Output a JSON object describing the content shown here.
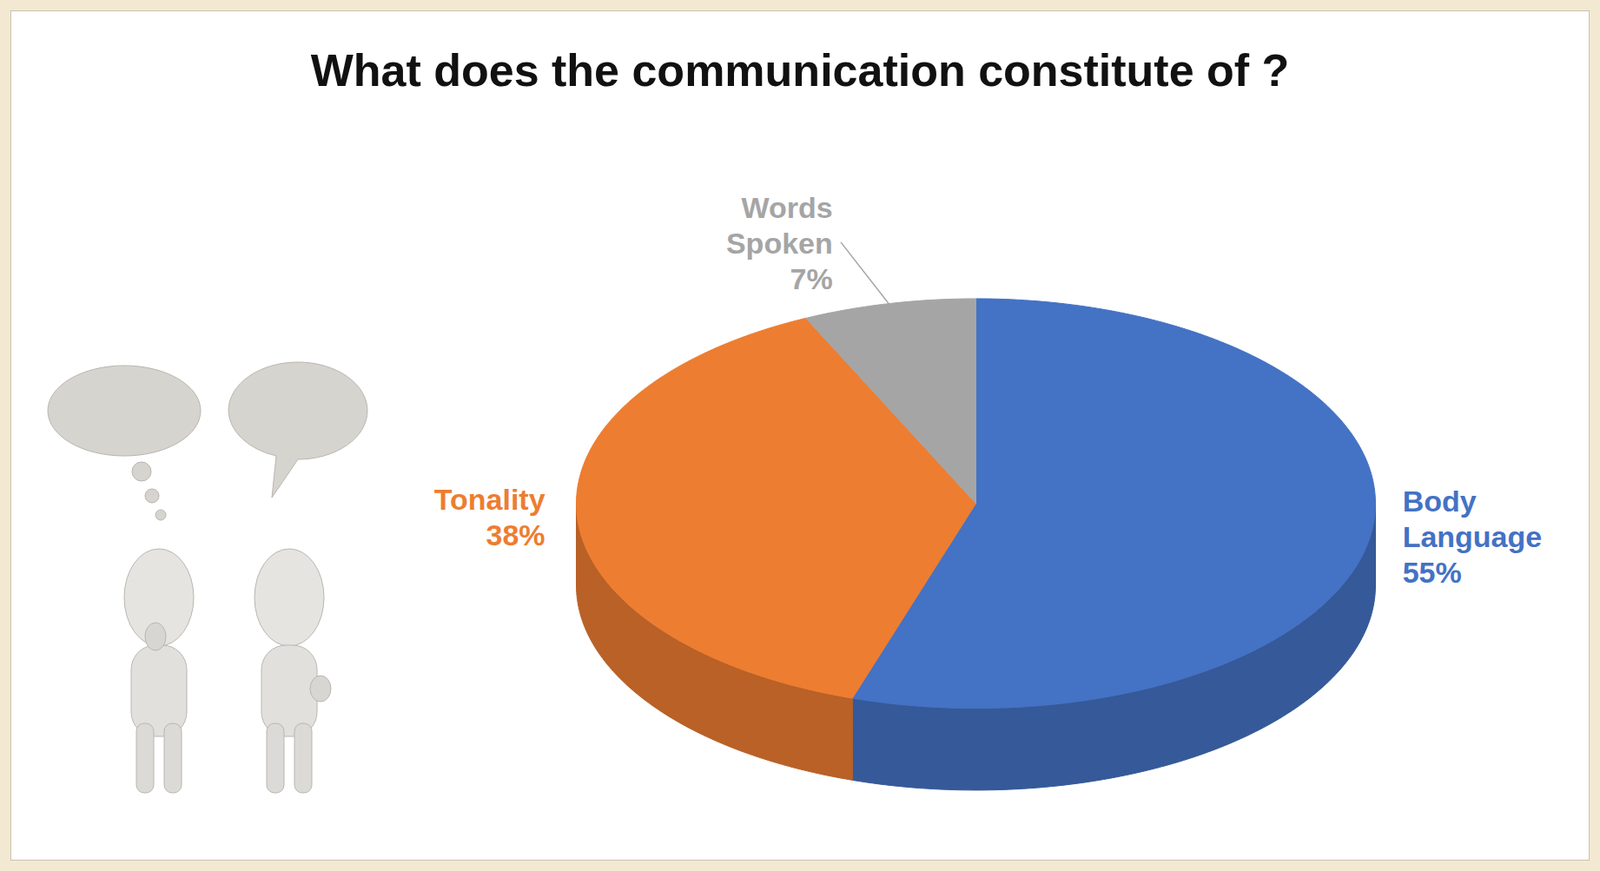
{
  "chart_data": {
    "type": "pie",
    "title": "What does the communication constitute of ?",
    "categories": [
      "Body Language",
      "Tonality",
      "Words Spoken"
    ],
    "values": [
      55,
      38,
      7
    ],
    "value_labels": [
      "55%",
      "38%",
      "7%"
    ],
    "colors": [
      "#4472c4",
      "#ed7d31",
      "#a5a5a5"
    ],
    "data_labels": true
  }
}
